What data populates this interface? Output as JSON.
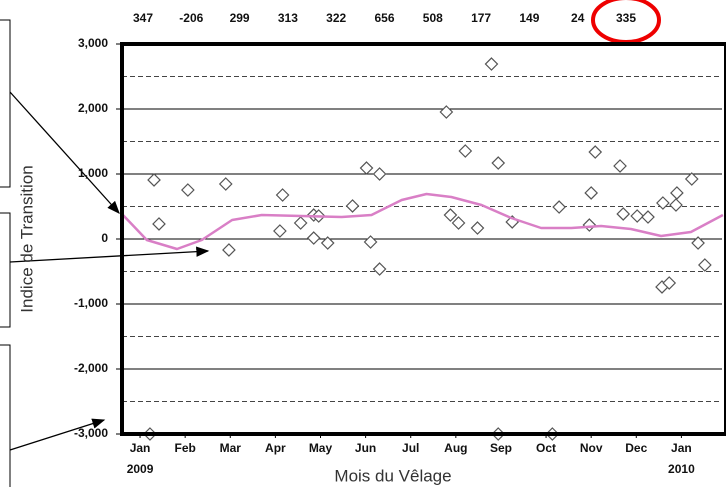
{
  "chart_data": {
    "type": "scatter",
    "y_label": "Indice de Transition",
    "x_label": "Mois du Vêlage",
    "top_values": [
      347,
      -206,
      299,
      313,
      322,
      656,
      508,
      177,
      149,
      24,
      335
    ],
    "xlim": [
      -0.4,
      12.9
    ],
    "ylim": [
      -3000,
      3000
    ],
    "xticks": [
      {
        "value": 0,
        "label": "Jan"
      },
      {
        "value": 1,
        "label": "Feb"
      },
      {
        "value": 2,
        "label": "Mar"
      },
      {
        "value": 3,
        "label": "Apr"
      },
      {
        "value": 4,
        "label": "May"
      },
      {
        "value": 5,
        "label": "Jun"
      },
      {
        "value": 6,
        "label": "Jul"
      },
      {
        "value": 7,
        "label": "Aug"
      },
      {
        "value": 8,
        "label": "Sep"
      },
      {
        "value": 9,
        "label": "Oct"
      },
      {
        "value": 10,
        "label": "Nov"
      },
      {
        "value": 11,
        "label": "Dec"
      },
      {
        "value": 12,
        "label": "Jan"
      }
    ],
    "x_year_labels": [
      {
        "value": 0,
        "label": "2009"
      },
      {
        "value": 12,
        "label": "2010"
      }
    ],
    "yticks": [
      {
        "value": 3000,
        "label": "3,000"
      },
      {
        "value": 2000,
        "label": "2,000"
      },
      {
        "value": 1000,
        "label": "1,000"
      },
      0,
      {
        "value": -1000,
        "label": "-1,000"
      },
      {
        "value": -2000,
        "label": "-2,000"
      },
      {
        "value": -3000,
        "label": "-3,000"
      }
    ],
    "y_minor_grid": [
      2500,
      1500,
      500,
      -500,
      -1500,
      -2500
    ],
    "grid": true,
    "series": [
      {
        "mode": "markers",
        "color": "#555555",
        "x": [
          0.31,
          0.42,
          1.06,
          1.9,
          1.97,
          3.16,
          3.1,
          3.56,
          3.85,
          3.96,
          3.85,
          4.16,
          4.71,
          5.02,
          5.31,
          5.11,
          5.31,
          6.79,
          6.88,
          7.06,
          7.21,
          7.48,
          7.79,
          7.94,
          8.25,
          9.29,
          9.96,
          10.0,
          10.09,
          10.64,
          10.71,
          11.02,
          11.26,
          11.59,
          11.57,
          11.73,
          11.9,
          11.88,
          12.23,
          12.37,
          12.52,
          0.22,
          7.94,
          9.14
        ],
        "values": [
          908,
          231,
          754,
          846,
          -169,
          677,
          123,
          246,
          369,
          354,
          15,
          -62,
          508,
          1092,
          1000,
          -46,
          -462,
          1954,
          369,
          246,
          1354,
          169,
          2692,
          1169,
          262,
          492,
          215,
          708,
          1338,
          1123,
          385,
          354,
          338,
          554,
          -738,
          -677,
          708,
          523,
          923,
          -62,
          -400,
          -3000,
          -3000,
          -3000
        ]
      },
      {
        "mode": "line",
        "color": "#d97fc6",
        "x": [
          -0.4,
          0.15,
          0.82,
          1.37,
          2.04,
          2.7,
          3.58,
          4.47,
          5.13,
          5.8,
          6.35,
          6.9,
          7.57,
          8.23,
          8.89,
          9.56,
          10.22,
          10.88,
          11.55,
          12.21,
          12.92
        ],
        "values": [
          385,
          -15,
          -154,
          -15,
          292,
          369,
          354,
          338,
          369,
          600,
          692,
          646,
          523,
          323,
          169,
          169,
          200,
          154,
          46,
          108,
          369
        ]
      }
    ]
  }
}
